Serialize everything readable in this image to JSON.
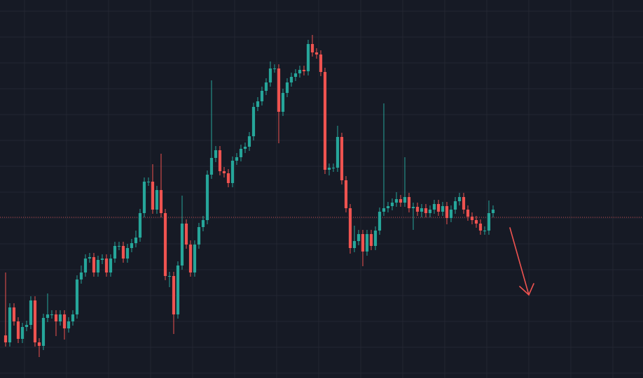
{
  "chart_data": {
    "type": "candlestick",
    "background": "#161a25",
    "grid_color": "#232632",
    "up_color": "#26a69a",
    "down_color": "#ef5350",
    "grid": true,
    "xlim": [
      -1.33,
      151.67
    ],
    "ylim": [
      0,
      541
    ],
    "xticks": [
      4.5,
      14.5,
      24.5,
      34.5,
      44.5,
      54.5,
      64.5,
      74.5,
      84.5,
      94.5,
      104.5,
      114.5,
      124.5,
      134.5,
      144.5
    ],
    "yticks": [
      7,
      44,
      81,
      118,
      155,
      192,
      229,
      266,
      303,
      340,
      377,
      414,
      451,
      488,
      525
    ],
    "price_line": {
      "value": 230,
      "color": "#ef5350"
    },
    "open": [
      61,
      51,
      101,
      81,
      56,
      73,
      76,
      111,
      51,
      46,
      86,
      91,
      91,
      81,
      91,
      71,
      81,
      91,
      141,
      151,
      171,
      173,
      151,
      169,
      171,
      151,
      171,
      189,
      189,
      171,
      186,
      193,
      201,
      236,
      281,
      281,
      241,
      269,
      236,
      146,
      146,
      91,
      161,
      221,
      191,
      151,
      191,
      216,
      226,
      291,
      315,
      326,
      296,
      293,
      279,
      311,
      316,
      328,
      331,
      346,
      388,
      396,
      411,
      423,
      443,
      443,
      381,
      408,
      423,
      431,
      436,
      441,
      439,
      478,
      466,
      463,
      438,
      298,
      301,
      301,
      345,
      283,
      243,
      186,
      196,
      206,
      181,
      206,
      189,
      211,
      238,
      243,
      246,
      251,
      256,
      251,
      259,
      243,
      245,
      238,
      243,
      236,
      241,
      249,
      238,
      246,
      229,
      241,
      253,
      259,
      241,
      231,
      226,
      221,
      211,
      211,
      236
    ],
    "high": [
      151,
      107,
      107,
      87,
      79,
      82,
      117,
      117,
      57,
      92,
      121,
      97,
      97,
      97,
      97,
      87,
      97,
      147,
      161,
      177,
      179,
      179,
      175,
      177,
      177,
      177,
      195,
      195,
      195,
      192,
      199,
      211,
      242,
      287,
      287,
      306,
      275,
      321,
      242,
      152,
      152,
      167,
      261,
      227,
      197,
      197,
      222,
      232,
      297,
      426,
      332,
      332,
      302,
      299,
      317,
      322,
      334,
      337,
      352,
      394,
      402,
      417,
      429,
      453,
      449,
      449,
      414,
      429,
      437,
      442,
      447,
      447,
      484,
      491,
      472,
      469,
      444,
      307,
      307,
      361,
      351,
      289,
      249,
      218,
      212,
      212,
      212,
      212,
      217,
      244,
      393,
      252,
      257,
      266,
      262,
      316,
      265,
      251,
      251,
      249,
      249,
      247,
      255,
      255,
      252,
      252,
      247,
      259,
      265,
      265,
      247,
      237,
      232,
      227,
      217,
      254,
      247
    ],
    "low": [
      45,
      45,
      75,
      50,
      50,
      67,
      70,
      45,
      30,
      40,
      80,
      85,
      60,
      75,
      55,
      65,
      75,
      85,
      135,
      145,
      165,
      145,
      145,
      163,
      145,
      145,
      165,
      183,
      165,
      165,
      180,
      187,
      195,
      230,
      275,
      235,
      235,
      230,
      140,
      130,
      63,
      85,
      155,
      185,
      145,
      145,
      185,
      210,
      220,
      285,
      309,
      290,
      287,
      273,
      273,
      305,
      310,
      322,
      325,
      340,
      382,
      390,
      405,
      417,
      437,
      336,
      375,
      402,
      417,
      425,
      430,
      433,
      433,
      460,
      457,
      432,
      292,
      290,
      295,
      295,
      277,
      237,
      178,
      180,
      190,
      160,
      175,
      183,
      183,
      205,
      232,
      237,
      240,
      245,
      245,
      245,
      237,
      212,
      232,
      230,
      230,
      230,
      235,
      232,
      232,
      220,
      223,
      235,
      247,
      235,
      225,
      220,
      215,
      205,
      205,
      205,
      230
    ],
    "close": [
      51,
      101,
      81,
      56,
      73,
      76,
      111,
      51,
      46,
      86,
      91,
      91,
      81,
      91,
      71,
      81,
      91,
      141,
      151,
      171,
      173,
      151,
      169,
      171,
      151,
      171,
      189,
      189,
      171,
      186,
      193,
      201,
      236,
      281,
      281,
      241,
      269,
      236,
      146,
      146,
      91,
      161,
      221,
      191,
      151,
      191,
      216,
      226,
      291,
      315,
      326,
      296,
      293,
      279,
      311,
      316,
      328,
      331,
      346,
      388,
      396,
      411,
      423,
      443,
      443,
      381,
      408,
      423,
      431,
      436,
      441,
      439,
      478,
      466,
      463,
      438,
      298,
      301,
      301,
      345,
      283,
      243,
      186,
      196,
      206,
      181,
      206,
      189,
      211,
      238,
      243,
      246,
      251,
      256,
      251,
      259,
      243,
      245,
      238,
      243,
      236,
      241,
      249,
      238,
      246,
      229,
      241,
      253,
      259,
      241,
      231,
      226,
      221,
      211,
      211,
      236,
      241
    ]
  }
}
